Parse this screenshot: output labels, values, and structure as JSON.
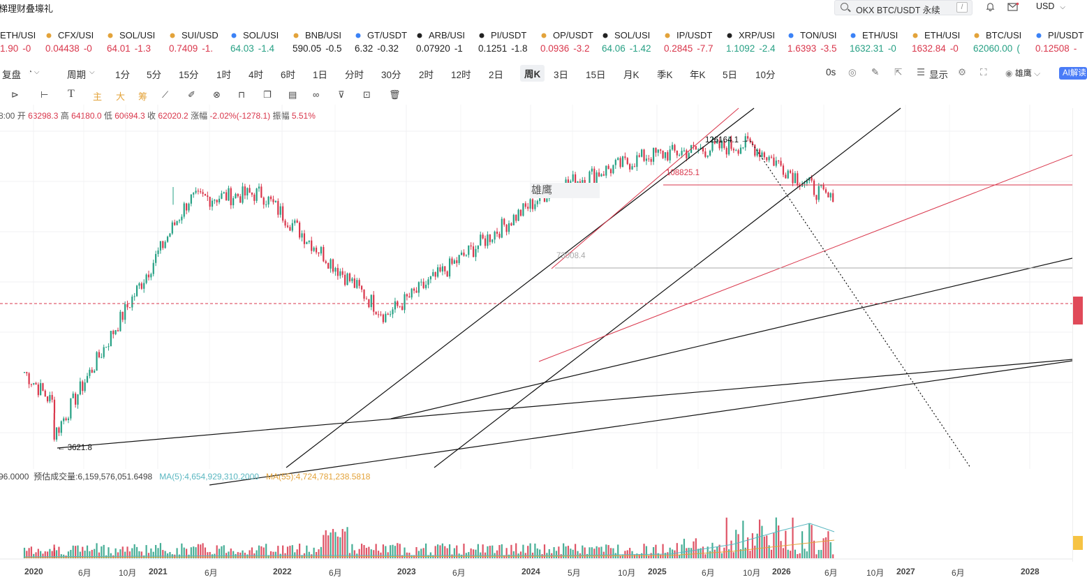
{
  "header": {
    "title": "梯理财叠壕礼",
    "search_text": "OKX BTC/USDT 永续",
    "search_key": "/",
    "currency": "USD"
  },
  "tickers": [
    {
      "name": "ETH/USI",
      "price": "1.90",
      "change": "-0",
      "color": "red"
    },
    {
      "name": "CFX/USI",
      "price": "0.04438",
      "change": "-0",
      "color": "red"
    },
    {
      "name": "SOL/USI",
      "price": "64.01",
      "change": "-1.3",
      "color": "red"
    },
    {
      "name": "SUI/USD",
      "price": "0.7409",
      "change": "-1.",
      "color": "red"
    },
    {
      "name": "SOL/USI",
      "price": "64.03",
      "change": "-1.4",
      "color": "green"
    },
    {
      "name": "BNB/USI",
      "price": "590.05",
      "change": "-0.5",
      "color": "dark"
    },
    {
      "name": "GT/USDT",
      "price": "6.32",
      "change": "-0.32",
      "color": "dark"
    },
    {
      "name": "ARB/USI",
      "price": "0.07920",
      "change": "-1",
      "color": "dark"
    },
    {
      "name": "PI/USDT",
      "price": "0.1251",
      "change": "-1.8",
      "color": "dark"
    },
    {
      "name": "OP/USDT",
      "price": "0.0936",
      "change": "-3.2",
      "color": "red"
    },
    {
      "name": "SOL/USI",
      "price": "64.06",
      "change": "-1.42",
      "color": "green"
    },
    {
      "name": "IP/USDT",
      "price": "0.2845",
      "change": "-7.7",
      "color": "red"
    },
    {
      "name": "XRP/USI",
      "price": "1.1092",
      "change": "-2.4",
      "color": "green"
    },
    {
      "name": "TON/USI",
      "price": "1.6393",
      "change": "-3.5",
      "color": "red"
    },
    {
      "name": "ETH/USI",
      "price": "1632.31",
      "change": "-0",
      "color": "green"
    },
    {
      "name": "ETH/USI",
      "price": "1632.84",
      "change": "-0",
      "color": "red"
    },
    {
      "name": "BTC/USI",
      "price": "62060.00",
      "change": "(",
      "color": "green"
    },
    {
      "name": "PI/USDT",
      "price": "0.12508",
      "change": "-",
      "color": "red"
    }
  ],
  "periods": [
    "复盘",
    "周期",
    "1分",
    "5分",
    "15分",
    "1时",
    "4时",
    "6时",
    "1日",
    "分时",
    "30分",
    "2时",
    "12时",
    "2日",
    "周K",
    "3日",
    "15日",
    "月K",
    "季K",
    "年K",
    "5日",
    "10分"
  ],
  "right_tools": {
    "countdown": "0s",
    "display": "显示",
    "indicator": "雄鹰",
    "ai": "AI解读"
  },
  "tool_labels": {
    "main": "主",
    "big": "大",
    "chip": "筹"
  },
  "ohlc": {
    "time": "8:00",
    "open_label": "开",
    "open": "63298.3",
    "high_label": "高",
    "high": "64180.0",
    "low_label": "低",
    "low": "60694.3",
    "close_label": "收",
    "close": "62020.2",
    "change_label": "涨幅",
    "change": "-2.02%(-1278.1)",
    "amp_label": "振幅",
    "amp": "5.51%"
  },
  "annotations": {
    "peak": "126164.1 →",
    "level_108": "108825.1",
    "level_73": "73008.4",
    "low": "← 3621.8",
    "watermark": "雄鹰"
  },
  "volume": {
    "label": "96.0000",
    "estimate": "预估成交量:6,159,576,051.6498",
    "ma5": "MA(5):4,654,929,310.2000",
    "ma55": "MA(55):4,724,781,238.5818"
  },
  "x_axis": [
    "2020",
    "6月",
    "10月",
    "2021",
    "6月",
    "2022",
    "6月",
    "2023",
    "6月",
    "2024",
    "5月",
    "10月",
    "2025",
    "6月",
    "10月",
    "2026",
    "6月",
    "10月",
    "2027",
    "6月",
    "2028"
  ],
  "chart_data": {
    "type": "candlestick",
    "symbol": "OKX BTC/USDT 永续",
    "interval": "周K",
    "anchors": [
      {
        "t": "2020-03",
        "price": 3621.8
      },
      {
        "t": "2021-04",
        "price": 64000
      },
      {
        "t": "2021-11",
        "price": 69000
      },
      {
        "t": "2022-11",
        "price": 15500
      },
      {
        "t": "2024-03",
        "price": 73008.4
      },
      {
        "t": "2024-12",
        "price": 108825.1
      },
      {
        "t": "2025-10",
        "price": 126164.1
      },
      {
        "t": "2026-06",
        "price": 62020.2
      }
    ],
    "colors": {
      "up": "#26a084",
      "down": "#d9364b"
    }
  }
}
